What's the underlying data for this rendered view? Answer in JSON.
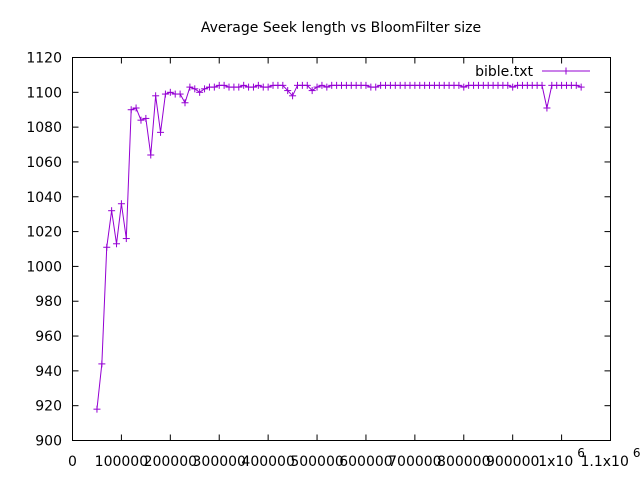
{
  "chart_data": {
    "type": "line",
    "title": "Average Seek length vs BloomFilter size",
    "xlabel": "",
    "ylabel": "",
    "xlim": [
      0,
      1100000
    ],
    "ylim": [
      900,
      1120
    ],
    "grid": false,
    "legend_position": "top-right",
    "x_tick_values": [
      0,
      100000,
      200000,
      300000,
      400000,
      500000,
      600000,
      700000,
      800000,
      900000,
      1000000,
      1100000
    ],
    "x_tick_labels": [
      "0",
      "100000",
      "200000",
      "300000",
      "400000",
      "500000",
      "600000",
      "700000",
      "800000",
      "900000",
      "1x10",
      "1.1x10"
    ],
    "x_tick_superscripts": [
      "",
      "",
      "",
      "",
      "",
      "",
      "",
      "",
      "",
      "",
      "6",
      "6"
    ],
    "y_tick_values": [
      900,
      920,
      940,
      960,
      980,
      1000,
      1020,
      1040,
      1060,
      1080,
      1100,
      1120
    ],
    "y_tick_labels": [
      "900",
      "920",
      "940",
      "960",
      "980",
      "1000",
      "1020",
      "1040",
      "1060",
      "1080",
      "1100",
      "1120"
    ],
    "series": [
      {
        "name": "bible.txt",
        "color": "#9400d3",
        "marker": "plus",
        "points": [
          [
            50000,
            918
          ],
          [
            60000,
            944
          ],
          [
            70000,
            1011
          ],
          [
            80000,
            1032
          ],
          [
            90000,
            1013
          ],
          [
            100000,
            1036
          ],
          [
            110000,
            1016
          ],
          [
            120000,
            1090
          ],
          [
            130000,
            1091
          ],
          [
            140000,
            1084
          ],
          [
            150000,
            1085
          ],
          [
            160000,
            1064
          ],
          [
            170000,
            1098
          ],
          [
            180000,
            1077
          ],
          [
            190000,
            1099
          ],
          [
            200000,
            1100
          ],
          [
            210000,
            1099
          ],
          [
            220000,
            1099
          ],
          [
            230000,
            1094
          ],
          [
            240000,
            1103
          ],
          [
            250000,
            1102
          ],
          [
            260000,
            1100
          ],
          [
            270000,
            1102
          ],
          [
            280000,
            1103
          ],
          [
            290000,
            1103
          ],
          [
            300000,
            1104
          ],
          [
            310000,
            1104
          ],
          [
            320000,
            1103
          ],
          [
            330000,
            1103
          ],
          [
            340000,
            1103
          ],
          [
            350000,
            1104
          ],
          [
            360000,
            1103
          ],
          [
            370000,
            1103
          ],
          [
            380000,
            1104
          ],
          [
            390000,
            1103
          ],
          [
            400000,
            1103
          ],
          [
            410000,
            1104
          ],
          [
            420000,
            1104
          ],
          [
            430000,
            1104
          ],
          [
            440000,
            1101
          ],
          [
            450000,
            1098
          ],
          [
            460000,
            1104
          ],
          [
            470000,
            1104
          ],
          [
            480000,
            1104
          ],
          [
            490000,
            1101
          ],
          [
            500000,
            1103
          ],
          [
            510000,
            1104
          ],
          [
            520000,
            1103
          ],
          [
            530000,
            1104
          ],
          [
            540000,
            1104
          ],
          [
            550000,
            1104
          ],
          [
            560000,
            1104
          ],
          [
            570000,
            1104
          ],
          [
            580000,
            1104
          ],
          [
            590000,
            1104
          ],
          [
            600000,
            1104
          ],
          [
            610000,
            1103
          ],
          [
            620000,
            1103
          ],
          [
            630000,
            1104
          ],
          [
            640000,
            1104
          ],
          [
            650000,
            1104
          ],
          [
            660000,
            1104
          ],
          [
            670000,
            1104
          ],
          [
            680000,
            1104
          ],
          [
            690000,
            1104
          ],
          [
            700000,
            1104
          ],
          [
            710000,
            1104
          ],
          [
            720000,
            1104
          ],
          [
            730000,
            1104
          ],
          [
            740000,
            1104
          ],
          [
            750000,
            1104
          ],
          [
            760000,
            1104
          ],
          [
            770000,
            1104
          ],
          [
            780000,
            1104
          ],
          [
            790000,
            1104
          ],
          [
            800000,
            1103
          ],
          [
            810000,
            1104
          ],
          [
            820000,
            1104
          ],
          [
            830000,
            1104
          ],
          [
            840000,
            1104
          ],
          [
            850000,
            1104
          ],
          [
            860000,
            1104
          ],
          [
            870000,
            1104
          ],
          [
            880000,
            1104
          ],
          [
            890000,
            1104
          ],
          [
            900000,
            1103
          ],
          [
            910000,
            1104
          ],
          [
            920000,
            1104
          ],
          [
            930000,
            1104
          ],
          [
            940000,
            1104
          ],
          [
            950000,
            1104
          ],
          [
            960000,
            1104
          ],
          [
            970000,
            1091
          ],
          [
            980000,
            1104
          ],
          [
            990000,
            1104
          ],
          [
            1000000,
            1104
          ],
          [
            1010000,
            1104
          ],
          [
            1020000,
            1104
          ],
          [
            1030000,
            1104
          ],
          [
            1040000,
            1103
          ]
        ]
      }
    ]
  }
}
